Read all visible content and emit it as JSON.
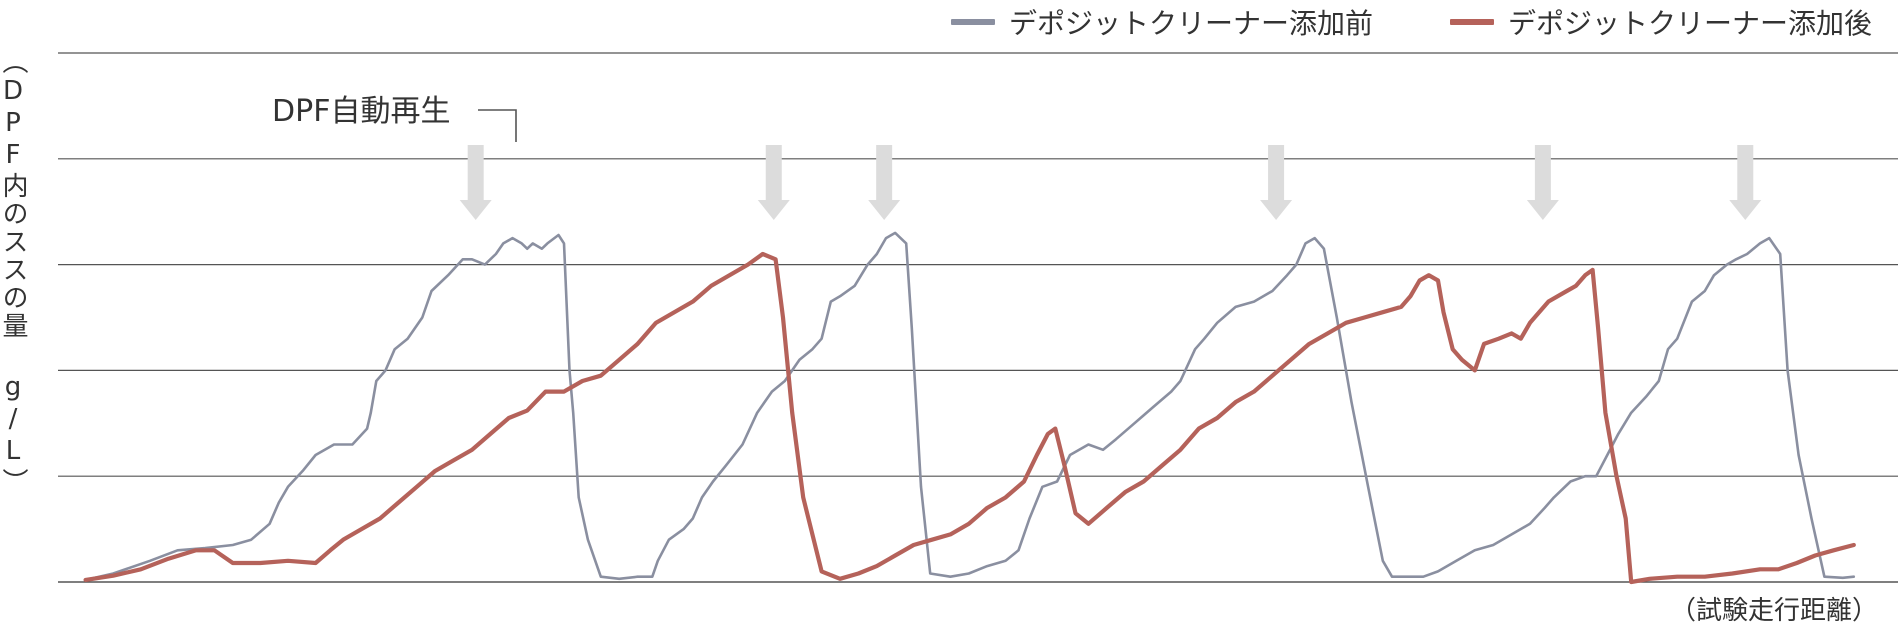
{
  "chart_data": {
    "type": "line",
    "title": "",
    "xlabel": "（試験走行距離）",
    "ylabel": "（DPF内のススの量 g/L）",
    "ylim": [
      0,
      5
    ],
    "xlim": [
      0,
      100
    ],
    "grid": true,
    "legend_position": "top-right",
    "annotation": "DPF自動再生",
    "regeneration_markers_x": [
      22.7,
      38.9,
      44.9,
      66.2,
      80.7,
      91.7
    ],
    "series": [
      {
        "name": "デポジットクリーナー添加前",
        "color": "#8a8fa0",
        "points": [
          [
            1.5,
            0.02
          ],
          [
            3,
            0.08
          ],
          [
            5,
            0.2
          ],
          [
            6.5,
            0.3
          ],
          [
            8,
            0.32
          ],
          [
            9.5,
            0.35
          ],
          [
            10.5,
            0.4
          ],
          [
            11.5,
            0.55
          ],
          [
            12,
            0.75
          ],
          [
            12.5,
            0.9
          ],
          [
            13.3,
            1.05
          ],
          [
            14,
            1.2
          ],
          [
            15,
            1.3
          ],
          [
            16,
            1.3
          ],
          [
            16.8,
            1.45
          ],
          [
            17,
            1.6
          ],
          [
            17.3,
            1.9
          ],
          [
            17.8,
            2.0
          ],
          [
            18.3,
            2.2
          ],
          [
            19,
            2.3
          ],
          [
            19.8,
            2.5
          ],
          [
            20.3,
            2.75
          ],
          [
            21.2,
            2.9
          ],
          [
            22,
            3.05
          ],
          [
            22.5,
            3.05
          ],
          [
            23.2,
            3.0
          ],
          [
            23.8,
            3.1
          ],
          [
            24.2,
            3.2
          ],
          [
            24.7,
            3.25
          ],
          [
            25.2,
            3.2
          ],
          [
            25.5,
            3.15
          ],
          [
            25.8,
            3.2
          ],
          [
            26.3,
            3.15
          ],
          [
            26.6,
            3.2
          ],
          [
            27.2,
            3.28
          ],
          [
            27.5,
            3.2
          ],
          [
            27.8,
            2.0
          ],
          [
            28.0,
            1.6
          ],
          [
            28.3,
            0.8
          ],
          [
            28.8,
            0.4
          ],
          [
            29.5,
            0.05
          ],
          [
            30.5,
            0.03
          ],
          [
            31.5,
            0.05
          ],
          [
            32.3,
            0.05
          ],
          [
            32.6,
            0.2
          ],
          [
            33.2,
            0.4
          ],
          [
            34,
            0.5
          ],
          [
            34.5,
            0.6
          ],
          [
            35,
            0.8
          ],
          [
            35.6,
            0.95
          ],
          [
            36.3,
            1.1
          ],
          [
            37.2,
            1.3
          ],
          [
            38,
            1.6
          ],
          [
            38.8,
            1.8
          ],
          [
            39.5,
            1.9
          ],
          [
            40.3,
            2.1
          ],
          [
            41,
            2.2
          ],
          [
            41.5,
            2.3
          ],
          [
            42,
            2.65
          ],
          [
            42.5,
            2.7
          ],
          [
            43.3,
            2.8
          ],
          [
            44,
            3.0
          ],
          [
            44.5,
            3.1
          ],
          [
            45,
            3.25
          ],
          [
            45.5,
            3.3
          ],
          [
            46.1,
            3.2
          ],
          [
            46.4,
            2.4
          ],
          [
            46.9,
            0.9
          ],
          [
            47.4,
            0.08
          ],
          [
            48.5,
            0.05
          ],
          [
            49.5,
            0.08
          ],
          [
            50.5,
            0.15
          ],
          [
            51.5,
            0.2
          ],
          [
            52.2,
            0.3
          ],
          [
            52.8,
            0.6
          ],
          [
            53.5,
            0.9
          ],
          [
            54.3,
            0.95
          ],
          [
            55,
            1.2
          ],
          [
            56,
            1.3
          ],
          [
            56.8,
            1.25
          ],
          [
            57.5,
            1.35
          ],
          [
            58.5,
            1.5
          ],
          [
            59.5,
            1.65
          ],
          [
            60.5,
            1.8
          ],
          [
            61,
            1.9
          ],
          [
            61.8,
            2.2
          ],
          [
            62.3,
            2.3
          ],
          [
            63,
            2.45
          ],
          [
            64,
            2.6
          ],
          [
            65,
            2.65
          ],
          [
            66,
            2.75
          ],
          [
            66.8,
            2.9
          ],
          [
            67.3,
            3.0
          ],
          [
            67.8,
            3.2
          ],
          [
            68.3,
            3.25
          ],
          [
            68.8,
            3.15
          ],
          [
            69.5,
            2.5
          ],
          [
            70.3,
            1.7
          ],
          [
            71.2,
            0.9
          ],
          [
            72,
            0.2
          ],
          [
            72.5,
            0.05
          ],
          [
            73.5,
            0.05
          ],
          [
            74.2,
            0.05
          ],
          [
            75,
            0.1
          ],
          [
            76,
            0.2
          ],
          [
            77,
            0.3
          ],
          [
            78,
            0.35
          ],
          [
            79,
            0.45
          ],
          [
            80,
            0.55
          ],
          [
            80.8,
            0.7
          ],
          [
            81.3,
            0.8
          ],
          [
            82.2,
            0.95
          ],
          [
            83,
            1.0
          ],
          [
            83.6,
            1.0
          ],
          [
            84.2,
            1.2
          ],
          [
            84.8,
            1.4
          ],
          [
            85.5,
            1.6
          ],
          [
            86.3,
            1.75
          ],
          [
            87,
            1.9
          ],
          [
            87.5,
            2.2
          ],
          [
            88,
            2.3
          ],
          [
            88.8,
            2.65
          ],
          [
            89.5,
            2.75
          ],
          [
            90,
            2.9
          ],
          [
            90.7,
            3.0
          ],
          [
            91.2,
            3.05
          ],
          [
            91.8,
            3.1
          ],
          [
            92.5,
            3.2
          ],
          [
            93,
            3.25
          ],
          [
            93.6,
            3.1
          ],
          [
            94,
            2.0
          ],
          [
            94.6,
            1.2
          ],
          [
            95.3,
            0.6
          ],
          [
            96,
            0.05
          ],
          [
            97,
            0.04
          ],
          [
            97.6,
            0.05
          ]
        ]
      },
      {
        "name": "デポジットクリーナー添加後",
        "color": "#b5625a",
        "points": [
          [
            1.5,
            0.02
          ],
          [
            3,
            0.06
          ],
          [
            4.5,
            0.12
          ],
          [
            6,
            0.22
          ],
          [
            7.5,
            0.3
          ],
          [
            8.5,
            0.3
          ],
          [
            9.5,
            0.18
          ],
          [
            11,
            0.18
          ],
          [
            12.5,
            0.2
          ],
          [
            14,
            0.18
          ],
          [
            14.8,
            0.3
          ],
          [
            15.5,
            0.4
          ],
          [
            16.5,
            0.5
          ],
          [
            17.5,
            0.6
          ],
          [
            18.5,
            0.75
          ],
          [
            19.5,
            0.9
          ],
          [
            20.5,
            1.05
          ],
          [
            21.5,
            1.15
          ],
          [
            22.5,
            1.25
          ],
          [
            23.5,
            1.4
          ],
          [
            24.5,
            1.55
          ],
          [
            25.5,
            1.62
          ],
          [
            26.5,
            1.8
          ],
          [
            27.5,
            1.8
          ],
          [
            28.5,
            1.9
          ],
          [
            29.5,
            1.95
          ],
          [
            30.5,
            2.1
          ],
          [
            31.5,
            2.25
          ],
          [
            32.5,
            2.45
          ],
          [
            33.5,
            2.55
          ],
          [
            34.5,
            2.65
          ],
          [
            35.5,
            2.8
          ],
          [
            36.5,
            2.9
          ],
          [
            37.5,
            3.0
          ],
          [
            38.3,
            3.1
          ],
          [
            39,
            3.05
          ],
          [
            39.4,
            2.5
          ],
          [
            39.9,
            1.6
          ],
          [
            40.5,
            0.8
          ],
          [
            41.5,
            0.1
          ],
          [
            42.5,
            0.03
          ],
          [
            43.5,
            0.08
          ],
          [
            44.5,
            0.15
          ],
          [
            45.5,
            0.25
          ],
          [
            46.5,
            0.35
          ],
          [
            47.5,
            0.4
          ],
          [
            48.5,
            0.45
          ],
          [
            49.5,
            0.55
          ],
          [
            50.5,
            0.7
          ],
          [
            51.5,
            0.8
          ],
          [
            52.5,
            0.95
          ],
          [
            53.2,
            1.2
          ],
          [
            53.8,
            1.4
          ],
          [
            54.2,
            1.45
          ],
          [
            54.7,
            1.1
          ],
          [
            55.3,
            0.65
          ],
          [
            56,
            0.55
          ],
          [
            57,
            0.7
          ],
          [
            58,
            0.85
          ],
          [
            59,
            0.95
          ],
          [
            60,
            1.1
          ],
          [
            61,
            1.25
          ],
          [
            62,
            1.45
          ],
          [
            63,
            1.55
          ],
          [
            64,
            1.7
          ],
          [
            65,
            1.8
          ],
          [
            66,
            1.95
          ],
          [
            67,
            2.1
          ],
          [
            68,
            2.25
          ],
          [
            69,
            2.35
          ],
          [
            70,
            2.45
          ],
          [
            71,
            2.5
          ],
          [
            72,
            2.55
          ],
          [
            73,
            2.6
          ],
          [
            73.5,
            2.7
          ],
          [
            74,
            2.85
          ],
          [
            74.5,
            2.9
          ],
          [
            75,
            2.85
          ],
          [
            75.3,
            2.55
          ],
          [
            75.8,
            2.2
          ],
          [
            76.3,
            2.1
          ],
          [
            77,
            2.0
          ],
          [
            77.5,
            2.25
          ],
          [
            78.3,
            2.3
          ],
          [
            79,
            2.35
          ],
          [
            79.5,
            2.3
          ],
          [
            80,
            2.45
          ],
          [
            81,
            2.65
          ],
          [
            82,
            2.75
          ],
          [
            82.5,
            2.8
          ],
          [
            83,
            2.9
          ],
          [
            83.4,
            2.95
          ],
          [
            83.7,
            2.4
          ],
          [
            84.1,
            1.6
          ],
          [
            84.7,
            1.0
          ],
          [
            85.2,
            0.6
          ],
          [
            85.5,
            0.0
          ],
          [
            86.5,
            0.03
          ],
          [
            88,
            0.05
          ],
          [
            89.5,
            0.05
          ],
          [
            91,
            0.08
          ],
          [
            92.5,
            0.12
          ],
          [
            93.5,
            0.12
          ],
          [
            94.5,
            0.18
          ],
          [
            95.5,
            0.25
          ],
          [
            96.5,
            0.3
          ],
          [
            97.6,
            0.35
          ]
        ]
      }
    ]
  }
}
